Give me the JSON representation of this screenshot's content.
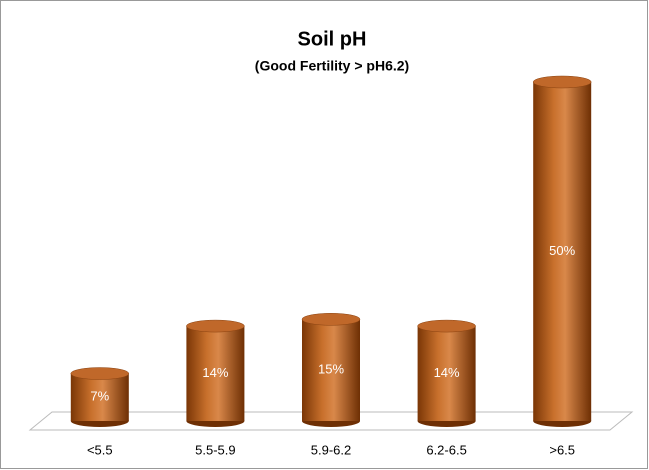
{
  "chart_data": {
    "type": "bar",
    "title": "Soil pH",
    "subtitle": "(Good Fertility > pH6.2)",
    "categories": [
      "<5.5",
      "5.5-5.9",
      "5.9-6.2",
      "6.2-6.5",
      ">6.5"
    ],
    "values": [
      7,
      14,
      15,
      14,
      50
    ],
    "value_labels": [
      "7%",
      "14%",
      "15%",
      "14%",
      "50%"
    ],
    "color": "#b85a14"
  }
}
